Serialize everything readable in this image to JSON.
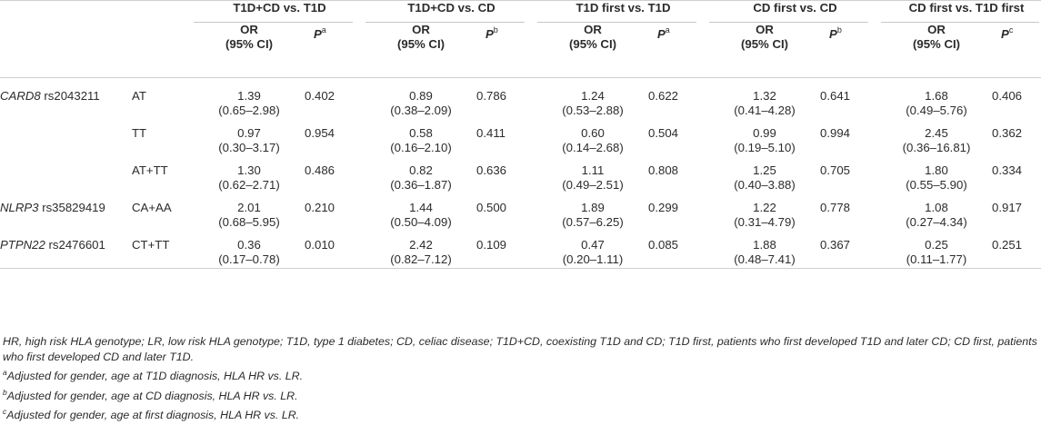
{
  "groups": [
    {
      "title": "T1D+CD vs. T1D",
      "p_sup": "a"
    },
    {
      "title": "T1D+CD vs. CD",
      "p_sup": "b"
    },
    {
      "title": "T1D first vs. T1D",
      "p_sup": "a"
    },
    {
      "title": "CD first vs. CD",
      "p_sup": "b"
    },
    {
      "title": "CD first vs. T1D first",
      "p_sup": "c"
    }
  ],
  "subheader": {
    "or_line1": "OR",
    "or_line2": "(95% CI)",
    "p_label": "P"
  },
  "rows": [
    {
      "gene": "CARD8",
      "snp": "rs2043211",
      "genotype": "AT",
      "cells": [
        [
          "1.39",
          "(0.65–2.98)",
          "0.402"
        ],
        [
          "0.89",
          "(0.38–2.09)",
          "0.786"
        ],
        [
          "1.24",
          "(0.53–2.88)",
          "0.622"
        ],
        [
          "1.32",
          "(0.41–4.28)",
          "0.641"
        ],
        [
          "1.68",
          "(0.49–5.76)",
          "0.406"
        ]
      ]
    },
    {
      "gene": "",
      "snp": "",
      "genotype": "TT",
      "cells": [
        [
          "0.97",
          "(0.30–3.17)",
          "0.954"
        ],
        [
          "0.58",
          "(0.16–2.10)",
          "0.411"
        ],
        [
          "0.60",
          "(0.14–2.68)",
          "0.504"
        ],
        [
          "0.99",
          "(0.19–5.10)",
          "0.994"
        ],
        [
          "2.45",
          "(0.36–16.81)",
          "0.362"
        ]
      ]
    },
    {
      "gene": "",
      "snp": "",
      "genotype": "AT+TT",
      "cells": [
        [
          "1.30",
          "(0.62–2.71)",
          "0.486"
        ],
        [
          "0.82",
          "(0.36–1.87)",
          "0.636"
        ],
        [
          "1.11",
          "(0.49–2.51)",
          "0.808"
        ],
        [
          "1.25",
          "(0.40–3.88)",
          "0.705"
        ],
        [
          "1.80",
          "(0.55–5.90)",
          "0.334"
        ]
      ]
    },
    {
      "gene": "NLRP3",
      "snp": "rs35829419",
      "genotype": "CA+AA",
      "cells": [
        [
          "2.01",
          "(0.68–5.95)",
          "0.210"
        ],
        [
          "1.44",
          "(0.50–4.09)",
          "0.500"
        ],
        [
          "1.89",
          "(0.57–6.25)",
          "0.299"
        ],
        [
          "1.22",
          "(0.31–4.79)",
          "0.778"
        ],
        [
          "1.08",
          "(0.27–4.34)",
          "0.917"
        ]
      ]
    },
    {
      "gene": "PTPN22",
      "snp": "rs2476601",
      "genotype": "CT+TT",
      "cells": [
        [
          "0.36",
          "(0.17–0.78)",
          "0.010"
        ],
        [
          "2.42",
          "(0.82–7.12)",
          "0.109"
        ],
        [
          "0.47",
          "(0.20–1.11)",
          "0.085"
        ],
        [
          "1.88",
          "(0.48–7.41)",
          "0.367"
        ],
        [
          "0.25",
          "(0.11–1.77)",
          "0.251"
        ]
      ]
    }
  ],
  "notes": {
    "abbrev": "HR, high risk HLA genotype; LR, low risk HLA genotype; T1D, type 1 diabetes; CD, celiac disease; T1D+CD, coexisting T1D and CD; T1D first, patients who first developed T1D and later CD; CD first, patients who first developed CD and later T1D.",
    "a_sup": "a",
    "a_text": "Adjusted for gender, age at T1D diagnosis, HLA HR vs. LR.",
    "b_sup": "b",
    "b_text": "Adjusted for gender, age at CD diagnosis, HLA HR vs. LR.",
    "c_sup": "c",
    "c_text": "Adjusted for gender, age at first diagnosis, HLA HR vs. LR."
  }
}
